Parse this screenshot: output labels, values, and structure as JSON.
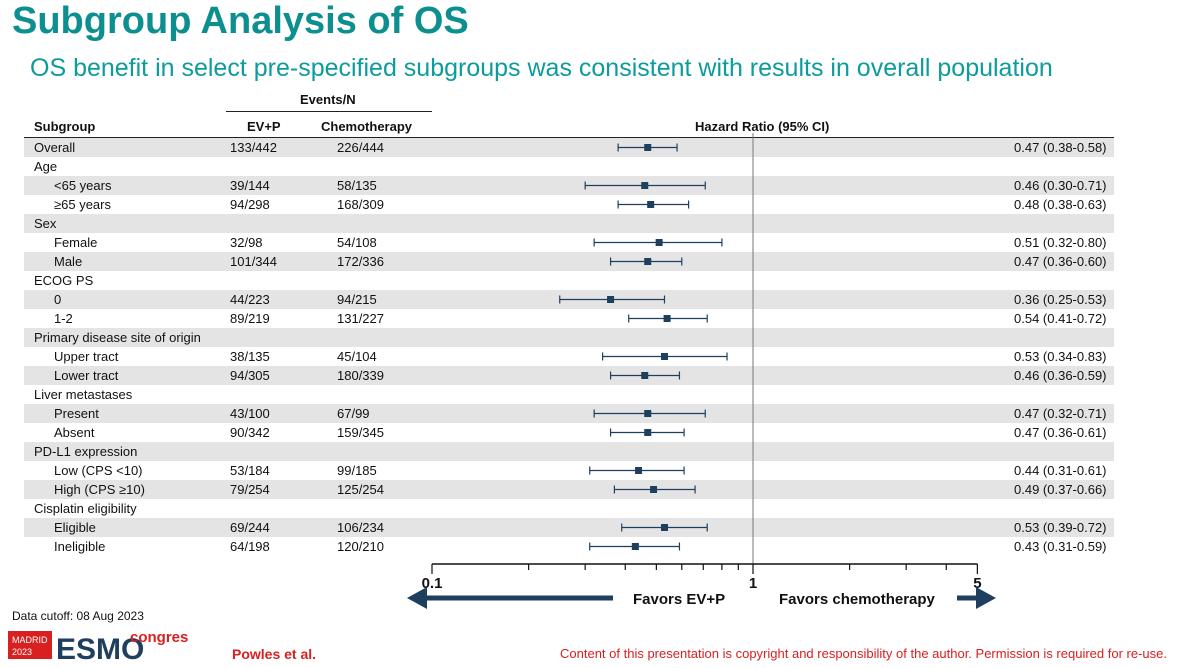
{
  "title": "Subgroup Analysis of OS",
  "subtitle": "OS benefit in select pre-specified subgroups was consistent with results in overall population",
  "table": {
    "events_header": "Events/N",
    "col_subgroup": "Subgroup",
    "col_evp": "EV+P",
    "col_chemo": "Chemotherapy",
    "col_hr": "Hazard Ratio (95% CI)"
  },
  "chart_data": {
    "type": "forest",
    "x_scale": "log",
    "xlim": [
      0.1,
      5
    ],
    "reference_line": 1,
    "tick_labels": [
      "0.1",
      "1",
      "5"
    ],
    "favors_left": "Favors EV+P",
    "favors_right": "Favors chemotherapy",
    "rows": [
      {
        "label": "Overall",
        "indent": false,
        "evp": "133/442",
        "chemo": "226/444",
        "hr": 0.47,
        "lo": 0.38,
        "hi": 0.58,
        "text": "0.47 (0.38-0.58)"
      },
      {
        "label": "Age",
        "indent": false
      },
      {
        "label": "<65 years",
        "indent": true,
        "evp": "39/144",
        "chemo": "58/135",
        "hr": 0.46,
        "lo": 0.3,
        "hi": 0.71,
        "text": "0.46 (0.30-0.71)"
      },
      {
        "label": "≥65 years",
        "indent": true,
        "evp": "94/298",
        "chemo": "168/309",
        "hr": 0.48,
        "lo": 0.38,
        "hi": 0.63,
        "text": "0.48 (0.38-0.63)"
      },
      {
        "label": "Sex",
        "indent": false
      },
      {
        "label": "Female",
        "indent": true,
        "evp": "32/98",
        "chemo": "54/108",
        "hr": 0.51,
        "lo": 0.32,
        "hi": 0.8,
        "text": "0.51 (0.32-0.80)"
      },
      {
        "label": "Male",
        "indent": true,
        "evp": "101/344",
        "chemo": "172/336",
        "hr": 0.47,
        "lo": 0.36,
        "hi": 0.6,
        "text": "0.47 (0.36-0.60)"
      },
      {
        "label": "ECOG PS",
        "indent": false
      },
      {
        "label": "0",
        "indent": true,
        "evp": "44/223",
        "chemo": "94/215",
        "hr": 0.36,
        "lo": 0.25,
        "hi": 0.53,
        "text": "0.36 (0.25-0.53)"
      },
      {
        "label": "1-2",
        "indent": true,
        "evp": "89/219",
        "chemo": "131/227",
        "hr": 0.54,
        "lo": 0.41,
        "hi": 0.72,
        "text": "0.54 (0.41-0.72)"
      },
      {
        "label": "Primary disease site of origin",
        "indent": false
      },
      {
        "label": "Upper tract",
        "indent": true,
        "evp": "38/135",
        "chemo": "45/104",
        "hr": 0.53,
        "lo": 0.34,
        "hi": 0.83,
        "text": "0.53 (0.34-0.83)"
      },
      {
        "label": "Lower tract",
        "indent": true,
        "evp": "94/305",
        "chemo": "180/339",
        "hr": 0.46,
        "lo": 0.36,
        "hi": 0.59,
        "text": "0.46 (0.36-0.59)"
      },
      {
        "label": "Liver metastases",
        "indent": false
      },
      {
        "label": "Present",
        "indent": true,
        "evp": "43/100",
        "chemo": "67/99",
        "hr": 0.47,
        "lo": 0.32,
        "hi": 0.71,
        "text": "0.47 (0.32-0.71)"
      },
      {
        "label": "Absent",
        "indent": true,
        "evp": "90/342",
        "chemo": "159/345",
        "hr": 0.47,
        "lo": 0.36,
        "hi": 0.61,
        "text": "0.47 (0.36-0.61)"
      },
      {
        "label": "PD-L1 expression",
        "indent": false
      },
      {
        "label": "Low (CPS <10)",
        "indent": true,
        "evp": "53/184",
        "chemo": "99/185",
        "hr": 0.44,
        "lo": 0.31,
        "hi": 0.61,
        "text": "0.44 (0.31-0.61)"
      },
      {
        "label": "High (CPS ≥10)",
        "indent": true,
        "evp": "79/254",
        "chemo": "125/254",
        "hr": 0.49,
        "lo": 0.37,
        "hi": 0.66,
        "text": "0.49 (0.37-0.66)"
      },
      {
        "label": "Cisplatin eligibility",
        "indent": false
      },
      {
        "label": "Eligible",
        "indent": true,
        "evp": "69/244",
        "chemo": "106/234",
        "hr": 0.53,
        "lo": 0.39,
        "hi": 0.72,
        "text": "0.53 (0.39-0.72)"
      },
      {
        "label": "Ineligible",
        "indent": true,
        "evp": "64/198",
        "chemo": "120/210",
        "hr": 0.43,
        "lo": 0.31,
        "hi": 0.59,
        "text": "0.43 (0.31-0.59)"
      }
    ]
  },
  "footer": {
    "data_cutoff": "Data cutoff: 08 Aug 2023",
    "author": "Powles et al.",
    "copyright": "Content of this presentation is copyright and responsibility of the author. Permission is required for re-use.",
    "logo_city": "MADRID",
    "logo_year": "2023",
    "logo_word": "ESMO",
    "logo_congress": "congress"
  },
  "colors": {
    "title": "#0d8f8f",
    "marker": "#1f3f5f",
    "arrow": "#1f3f5f",
    "row_shade": "#e4e4e4",
    "footer_red": "#d92020"
  }
}
